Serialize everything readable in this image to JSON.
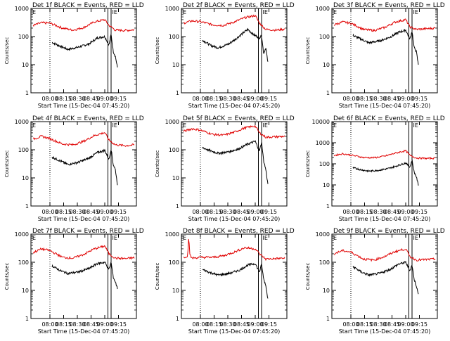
{
  "style": {
    "events_color": "#000000",
    "lld_color": "#e00000",
    "axis_color": "#000000"
  },
  "chart_data": [
    {
      "type": "line",
      "title": "Det 1f BLACK = Events, RED = LLD",
      "xlabel": "Start Time (15-Dec-04 07:45:20)",
      "ylabel": "Counts/sec",
      "log_y": true,
      "ylim": [
        1,
        1000
      ],
      "y_ticks": [
        {
          "v": 1,
          "label": "1"
        },
        {
          "v": 10,
          "label": "10"
        },
        {
          "v": 100,
          "label": "100"
        },
        {
          "v": 1000,
          "label": "1000"
        }
      ],
      "x_ticks": [
        "08:00",
        "08:15",
        "08:30",
        "08:45",
        "09:00",
        "09:15"
      ],
      "markers": {
        "left": "E",
        "right": "IE"
      },
      "series": [
        {
          "key": "events",
          "x": [
            0.2,
            0.28,
            0.35,
            0.45,
            0.55,
            0.63,
            0.7,
            0.74,
            0.76,
            0.78,
            0.8,
            0.82
          ],
          "values": [
            62,
            45,
            35,
            42,
            55,
            90,
            100,
            50,
            120,
            30,
            20,
            8
          ]
        },
        {
          "key": "lld",
          "x": [
            0.02,
            0.1,
            0.18,
            0.3,
            0.4,
            0.5,
            0.6,
            0.7,
            0.74,
            0.8,
            0.9,
            0.98
          ],
          "values": [
            250,
            310,
            300,
            200,
            170,
            210,
            330,
            400,
            250,
            170,
            165,
            175
          ]
        }
      ]
    },
    {
      "type": "line",
      "title": "Det 2f BLACK = Events, RED = LLD",
      "xlabel": "Start Time (15-Dec-04 07:45:20)",
      "ylabel": "Counts/sec",
      "log_y": true,
      "ylim": [
        1,
        1000
      ],
      "y_ticks": [
        {
          "v": 1,
          "label": "1"
        },
        {
          "v": 10,
          "label": "10"
        },
        {
          "v": 100,
          "label": "100"
        },
        {
          "v": 1000,
          "label": "1000"
        }
      ],
      "x_ticks": [
        "08:00",
        "08:15",
        "08:30",
        "08:45",
        "09:00",
        "09:15"
      ],
      "markers": {
        "left": "E",
        "right": "IE"
      },
      "series": [
        {
          "key": "events",
          "x": [
            0.2,
            0.28,
            0.35,
            0.45,
            0.52,
            0.58,
            0.63,
            0.68,
            0.74,
            0.76,
            0.78,
            0.8,
            0.82
          ],
          "values": [
            75,
            48,
            40,
            55,
            85,
            130,
            180,
            120,
            90,
            110,
            25,
            40,
            12
          ]
        },
        {
          "key": "lld",
          "x": [
            0.02,
            0.1,
            0.18,
            0.3,
            0.4,
            0.5,
            0.6,
            0.7,
            0.74,
            0.8,
            0.9,
            0.98
          ],
          "values": [
            300,
            360,
            340,
            260,
            250,
            330,
            470,
            560,
            300,
            180,
            170,
            185
          ]
        }
      ]
    },
    {
      "type": "line",
      "title": "Det 3f BLACK = Events, RED = LLD",
      "xlabel": "Start Time (15-Dec-04 07:45:20)",
      "ylabel": "Counts/sec",
      "log_y": true,
      "ylim": [
        1,
        1000
      ],
      "y_ticks": [
        {
          "v": 1,
          "label": "1"
        },
        {
          "v": 10,
          "label": "10"
        },
        {
          "v": 100,
          "label": "100"
        },
        {
          "v": 1000,
          "label": "1000"
        }
      ],
      "x_ticks": [
        "08:00",
        "08:15",
        "08:30",
        "08:45",
        "09:00",
        "09:15"
      ],
      "markers": {
        "left": "E",
        "right": "IE"
      },
      "series": [
        {
          "key": "events",
          "x": [
            0.2,
            0.28,
            0.35,
            0.45,
            0.55,
            0.63,
            0.7,
            0.74,
            0.76,
            0.78,
            0.8,
            0.82
          ],
          "values": [
            110,
            80,
            60,
            70,
            95,
            140,
            170,
            80,
            160,
            40,
            30,
            10
          ]
        },
        {
          "key": "lld",
          "x": [
            0.02,
            0.1,
            0.18,
            0.3,
            0.4,
            0.5,
            0.6,
            0.7,
            0.74,
            0.8,
            0.9,
            0.98
          ],
          "values": [
            260,
            330,
            300,
            180,
            165,
            210,
            330,
            400,
            220,
            180,
            190,
            200
          ]
        }
      ]
    },
    {
      "type": "line",
      "title": "Det 4f BLACK = Events, RED = LLD",
      "xlabel": "Start Time (15-Dec-04 07:45:20)",
      "ylabel": "Counts/sec",
      "log_y": true,
      "ylim": [
        1,
        1000
      ],
      "y_ticks": [
        {
          "v": 1,
          "label": "1"
        },
        {
          "v": 10,
          "label": "10"
        },
        {
          "v": 100,
          "label": "100"
        },
        {
          "v": 1000,
          "label": "1000"
        }
      ],
      "x_ticks": [
        "08:00",
        "08:15",
        "08:30",
        "08:45",
        "09:00",
        "09:15"
      ],
      "markers": {
        "left": "E",
        "right": "IE"
      },
      "series": [
        {
          "key": "events",
          "x": [
            0.2,
            0.28,
            0.35,
            0.45,
            0.55,
            0.63,
            0.7,
            0.74,
            0.76,
            0.78,
            0.8,
            0.82
          ],
          "values": [
            55,
            40,
            30,
            36,
            50,
            80,
            95,
            45,
            110,
            30,
            20,
            6
          ]
        },
        {
          "key": "lld",
          "x": [
            0.02,
            0.1,
            0.18,
            0.3,
            0.4,
            0.5,
            0.6,
            0.7,
            0.74,
            0.8,
            0.9,
            0.98
          ],
          "values": [
            240,
            300,
            250,
            160,
            150,
            200,
            320,
            410,
            220,
            150,
            140,
            150
          ]
        }
      ]
    },
    {
      "type": "line",
      "title": "Det 5f BLACK = Events, RED = LLD",
      "xlabel": "Start Time (15-Dec-04 07:45:20)",
      "ylabel": "Counts/sec",
      "log_y": true,
      "ylim": [
        1,
        1000
      ],
      "y_ticks": [
        {
          "v": 1,
          "label": "1"
        },
        {
          "v": 10,
          "label": "10"
        },
        {
          "v": 100,
          "label": "100"
        },
        {
          "v": 1000,
          "label": "1000"
        }
      ],
      "x_ticks": [
        "08:00",
        "08:15",
        "08:30",
        "08:45",
        "09:00",
        "09:15"
      ],
      "markers": {
        "left": "E",
        "right": "IE"
      },
      "series": [
        {
          "key": "events",
          "x": [
            0.2,
            0.28,
            0.35,
            0.45,
            0.55,
            0.63,
            0.7,
            0.74,
            0.76,
            0.78,
            0.8,
            0.82
          ],
          "values": [
            120,
            90,
            75,
            85,
            110,
            160,
            200,
            90,
            190,
            40,
            20,
            6
          ]
        },
        {
          "key": "lld",
          "x": [
            0.02,
            0.1,
            0.18,
            0.3,
            0.4,
            0.5,
            0.6,
            0.7,
            0.74,
            0.8,
            0.9,
            0.98
          ],
          "values": [
            450,
            560,
            500,
            350,
            330,
            420,
            600,
            700,
            400,
            280,
            290,
            300
          ]
        }
      ]
    },
    {
      "type": "line",
      "title": "Det 6f BLACK = Events, RED = LLD",
      "xlabel": "Start Time (15-Dec-04 07:45:20)",
      "ylabel": "Counts/sec",
      "log_y": true,
      "ylim": [
        1,
        10000
      ],
      "y_ticks": [
        {
          "v": 1,
          "label": "1"
        },
        {
          "v": 10,
          "label": "10"
        },
        {
          "v": 100,
          "label": "100"
        },
        {
          "v": 1000,
          "label": "1000"
        },
        {
          "v": 10000,
          "label": "10000"
        }
      ],
      "x_ticks": [
        "08:00",
        "08:15",
        "08:30",
        "08:45",
        "09:00",
        "09:15"
      ],
      "markers": {
        "left": "E",
        "right": "IE"
      },
      "series": [
        {
          "key": "events",
          "x": [
            0.2,
            0.28,
            0.35,
            0.45,
            0.55,
            0.63,
            0.7,
            0.74,
            0.76,
            0.78,
            0.8,
            0.82
          ],
          "values": [
            65,
            52,
            45,
            50,
            62,
            85,
            110,
            70,
            150,
            40,
            25,
            10
          ]
        },
        {
          "key": "lld",
          "x": [
            0.02,
            0.1,
            0.18,
            0.3,
            0.4,
            0.5,
            0.6,
            0.7,
            0.74,
            0.8,
            0.9,
            0.98
          ],
          "values": [
            250,
            300,
            260,
            200,
            195,
            230,
            320,
            420,
            250,
            190,
            180,
            185
          ]
        }
      ]
    },
    {
      "type": "line",
      "title": "Det 7f BLACK = Events, RED = LLD",
      "xlabel": "Start Time (15-Dec-04 07:45:20)",
      "ylabel": "Counts/sec",
      "log_y": true,
      "ylim": [
        1,
        1000
      ],
      "y_ticks": [
        {
          "v": 1,
          "label": "1"
        },
        {
          "v": 10,
          "label": "10"
        },
        {
          "v": 100,
          "label": "100"
        },
        {
          "v": 1000,
          "label": "1000"
        }
      ],
      "x_ticks": [
        "08:00",
        "08:15",
        "08:30",
        "08:45",
        "09:00",
        "09:15"
      ],
      "markers": {
        "left": "E",
        "right": "IE"
      },
      "series": [
        {
          "key": "events",
          "x": [
            0.2,
            0.28,
            0.35,
            0.45,
            0.55,
            0.63,
            0.7,
            0.74,
            0.76,
            0.78,
            0.8,
            0.82
          ],
          "values": [
            75,
            50,
            40,
            45,
            60,
            90,
            100,
            55,
            100,
            30,
            20,
            12
          ]
        },
        {
          "key": "lld",
          "x": [
            0.02,
            0.1,
            0.18,
            0.3,
            0.4,
            0.5,
            0.6,
            0.7,
            0.74,
            0.8,
            0.9,
            0.98
          ],
          "values": [
            220,
            300,
            260,
            150,
            140,
            190,
            300,
            380,
            200,
            140,
            135,
            145
          ]
        }
      ]
    },
    {
      "type": "line",
      "title": "Det 8f BLACK = Events, RED = LLD",
      "xlabel": "Start Time (15-Dec-04 07:45:20)",
      "ylabel": "Counts/sec",
      "log_y": true,
      "ylim": [
        1,
        1000
      ],
      "y_ticks": [
        {
          "v": 1,
          "label": "1"
        },
        {
          "v": 10,
          "label": "10"
        },
        {
          "v": 100,
          "label": "100"
        },
        {
          "v": 1000,
          "label": "1000"
        }
      ],
      "x_ticks": [
        "08:00",
        "08:15",
        "08:30",
        "08:45",
        "09:00",
        "09:15"
      ],
      "markers": {
        "left": "E",
        "right": "IE"
      },
      "series": [
        {
          "key": "events",
          "x": [
            0.2,
            0.28,
            0.35,
            0.45,
            0.55,
            0.63,
            0.7,
            0.74,
            0.76,
            0.78,
            0.8,
            0.82
          ],
          "values": [
            55,
            42,
            35,
            40,
            52,
            80,
            90,
            45,
            85,
            25,
            15,
            5
          ]
        },
        {
          "key": "lld",
          "x": [
            0.02,
            0.06,
            0.07,
            0.08,
            0.1,
            0.18,
            0.3,
            0.4,
            0.5,
            0.6,
            0.7,
            0.74,
            0.8,
            0.9,
            0.98
          ],
          "values": [
            150,
            170,
            1000,
            180,
            140,
            150,
            150,
            170,
            230,
            330,
            300,
            200,
            130,
            135,
            140
          ]
        }
      ]
    },
    {
      "type": "line",
      "title": "Det 9f BLACK = Events, RED = LLD",
      "xlabel": "Start Time (15-Dec-04 07:45:20)",
      "ylabel": "Counts/sec",
      "log_y": true,
      "ylim": [
        1,
        1000
      ],
      "y_ticks": [
        {
          "v": 1,
          "label": "1"
        },
        {
          "v": 10,
          "label": "10"
        },
        {
          "v": 100,
          "label": "100"
        },
        {
          "v": 1000,
          "label": "1000"
        }
      ],
      "x_ticks": [
        "08:00",
        "08:15",
        "08:30",
        "08:45",
        "09:00",
        "09:15"
      ],
      "markers": {
        "left": "E",
        "right": "IE"
      },
      "series": [
        {
          "key": "events",
          "x": [
            0.2,
            0.28,
            0.35,
            0.45,
            0.55,
            0.63,
            0.7,
            0.74,
            0.76,
            0.78,
            0.8,
            0.82
          ],
          "values": [
            70,
            45,
            35,
            40,
            55,
            85,
            100,
            50,
            80,
            25,
            15,
            7
          ]
        },
        {
          "key": "lld",
          "x": [
            0.02,
            0.1,
            0.18,
            0.3,
            0.4,
            0.5,
            0.6,
            0.7,
            0.74,
            0.8,
            0.9,
            0.98
          ],
          "values": [
            200,
            260,
            230,
            130,
            120,
            160,
            240,
            300,
            160,
            120,
            125,
            130
          ]
        }
      ]
    }
  ]
}
